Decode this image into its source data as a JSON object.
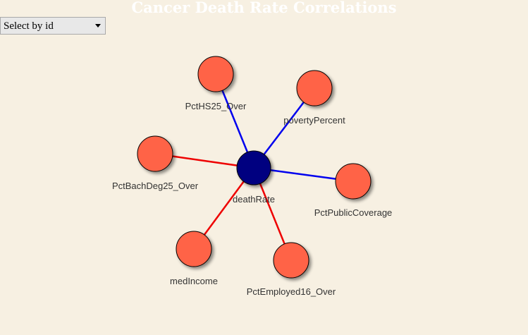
{
  "title": "Cancer Death Rate Correlations",
  "select": {
    "placeholder": "Select by id"
  },
  "colors": {
    "background": "#f7f0e2",
    "center_node": "#000080",
    "leaf_node": "#ff6347",
    "positive_link": "#0000ee",
    "negative_link": "#ee0000",
    "node_stroke": "#000000"
  },
  "graph": {
    "center": {
      "id": "deathRate",
      "label": "deathRate"
    },
    "nodes": [
      {
        "id": "PctHS25_Over",
        "label": "PctHS25_Over",
        "link": "positive"
      },
      {
        "id": "povertyPercent",
        "label": "povertyPercent",
        "link": "positive"
      },
      {
        "id": "PctPublicCoverage",
        "label": "PctPublicCoverage",
        "link": "positive"
      },
      {
        "id": "PctEmployed16_Over",
        "label": "PctEmployed16_Over",
        "link": "negative"
      },
      {
        "id": "medIncome",
        "label": "medIncome",
        "link": "negative"
      },
      {
        "id": "PctBachDeg25_Over",
        "label": "PctBachDeg25_Over",
        "link": "negative"
      }
    ]
  }
}
